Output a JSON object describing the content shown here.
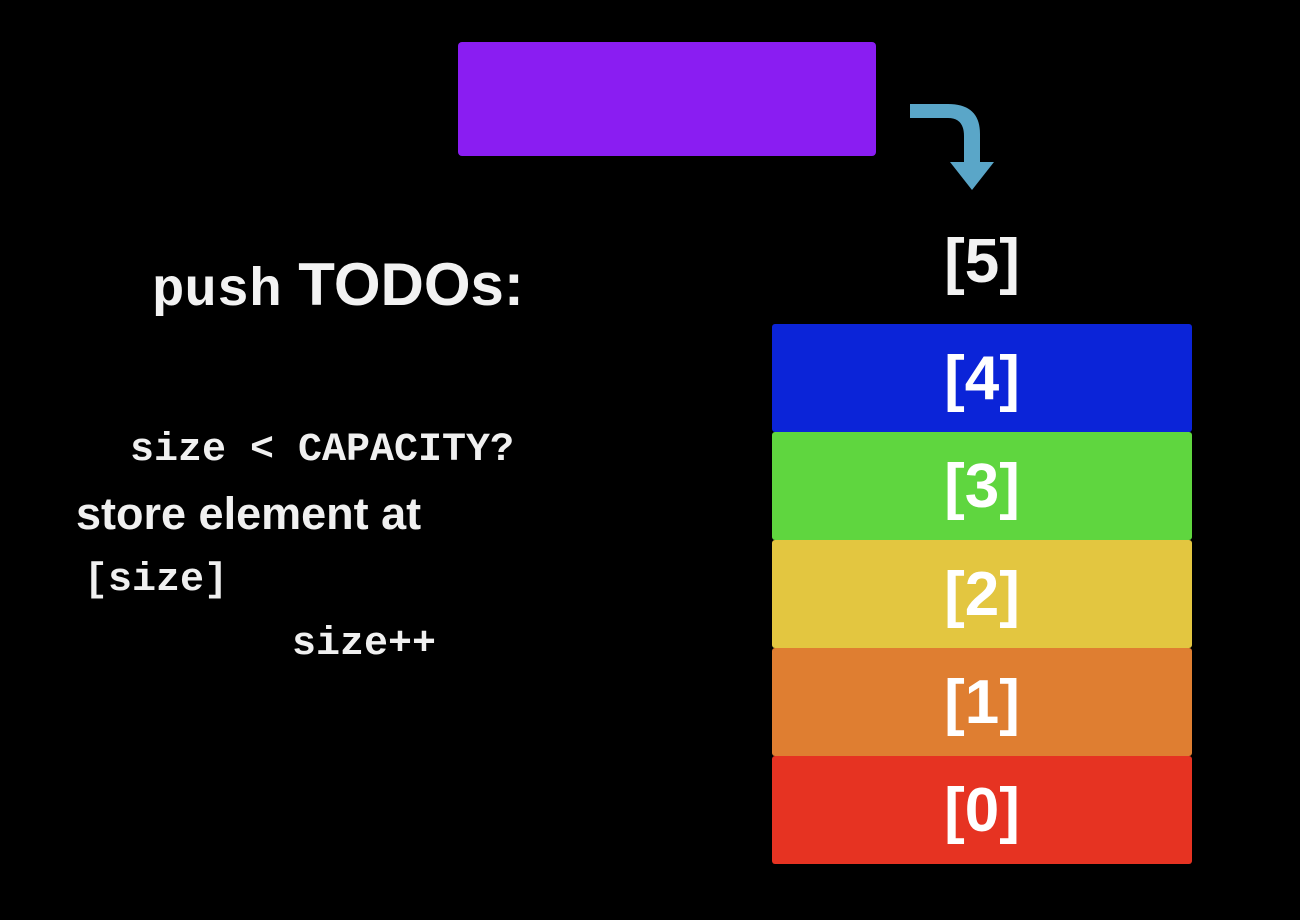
{
  "incoming_element": {
    "color": "#8a1df2"
  },
  "arrow": {
    "color": "#5aa6c8",
    "icon": "curved-down-arrow-icon"
  },
  "next_index_label": "[5]",
  "heading": {
    "keyword": "push",
    "rest": " TODOs:"
  },
  "steps": [
    {
      "text": "size < CAPACITY?"
    },
    {
      "text": "store element at"
    },
    {
      "text": "[size]"
    },
    {
      "text": "size++"
    }
  ],
  "slots": [
    {
      "label": "[4]",
      "color": "#0b24d8"
    },
    {
      "label": "[3]",
      "color": "#5fd63f"
    },
    {
      "label": "[2]",
      "color": "#e3c640"
    },
    {
      "label": "[1]",
      "color": "#df7e31"
    },
    {
      "label": "[0]",
      "color": "#e63322"
    }
  ]
}
